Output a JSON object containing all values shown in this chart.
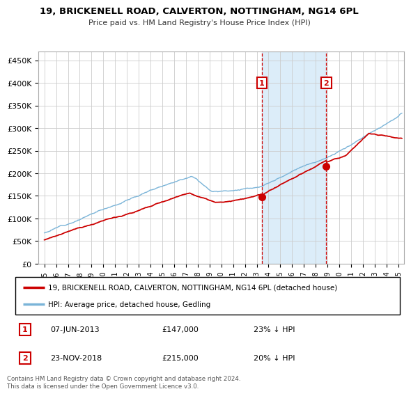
{
  "title": "19, BRICKENELL ROAD, CALVERTON, NOTTINGHAM, NG14 6PL",
  "subtitle": "Price paid vs. HM Land Registry's House Price Index (HPI)",
  "ylabel_ticks": [
    "£0",
    "£50K",
    "£100K",
    "£150K",
    "£200K",
    "£250K",
    "£300K",
    "£350K",
    "£400K",
    "£450K"
  ],
  "ytick_values": [
    0,
    50000,
    100000,
    150000,
    200000,
    250000,
    300000,
    350000,
    400000,
    450000
  ],
  "ylim": [
    0,
    470000
  ],
  "xlim_start": 1994.5,
  "xlim_end": 2025.5,
  "xticks": [
    1995,
    1996,
    1997,
    1998,
    1999,
    2000,
    2001,
    2002,
    2003,
    2004,
    2005,
    2006,
    2007,
    2008,
    2009,
    2010,
    2011,
    2012,
    2013,
    2014,
    2015,
    2016,
    2017,
    2018,
    2019,
    2020,
    2021,
    2022,
    2023,
    2024,
    2025
  ],
  "hpi_color": "#7ab4d8",
  "price_color": "#cc0000",
  "bg_fill_color": "#d6eaf8",
  "transaction1": {
    "label": "1",
    "date": "07-JUN-2013",
    "price": 147000,
    "hpi_diff": "23% ↓ HPI",
    "x": 2013.44
  },
  "transaction2": {
    "label": "2",
    "date": "23-NOV-2018",
    "price": 215000,
    "hpi_diff": "20% ↓ HPI",
    "x": 2018.9
  },
  "legend_line1": "19, BRICKENELL ROAD, CALVERTON, NOTTINGHAM, NG14 6PL (detached house)",
  "legend_line2": "HPI: Average price, detached house, Gedling",
  "footer": "Contains HM Land Registry data © Crown copyright and database right 2024.\nThis data is licensed under the Open Government Licence v3.0.",
  "label_box_color": "#cc0000"
}
